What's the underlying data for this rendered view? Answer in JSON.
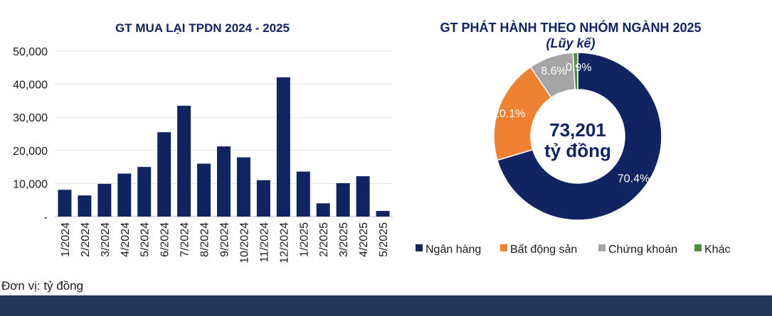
{
  "chart_data": [
    {
      "type": "bar",
      "title": "GT MUA LẠI TPDN 2024 - 2025",
      "categories": [
        "1/2024",
        "2/2024",
        "3/2024",
        "4/2024",
        "5/2024",
        "6/2024",
        "7/2024",
        "8/2024",
        "9/2024",
        "10/2024",
        "11/2024",
        "12/2024",
        "1/2025",
        "2/2025",
        "3/2025",
        "4/2025",
        "5/2025"
      ],
      "values": [
        8100,
        6400,
        9900,
        13000,
        15000,
        25500,
        33500,
        16000,
        21200,
        17900,
        11000,
        42100,
        13600,
        4000,
        10100,
        12200,
        1700
      ],
      "ylim": [
        0,
        50000
      ],
      "yticks": [
        0,
        10000,
        20000,
        30000,
        40000,
        50000
      ],
      "ytick_labels": [
        "-",
        "10,000",
        "20,000",
        "30,000",
        "40,000",
        "50,000"
      ],
      "color": "#0f2461",
      "grid": true
    },
    {
      "type": "pie",
      "title": "GT PHÁT HÀNH THEO NHÓM NGÀNH 2025",
      "subtitle": "(Lũy kế)",
      "center_value": "73,201",
      "center_unit": "tỷ đồng",
      "slices": [
        {
          "label": "Ngân hàng",
          "value": 70.4,
          "display": "70.4%",
          "color": "#0f2461"
        },
        {
          "label": "Bất động sản",
          "value": 20.1,
          "display": "20.1%",
          "color": "#ef8133"
        },
        {
          "label": "Chứng khoán",
          "value": 8.6,
          "display": "8.6%",
          "color": "#a5a5a5"
        },
        {
          "label": "Khác",
          "value": 0.9,
          "display": "0.9%",
          "color": "#4d8f3b"
        }
      ],
      "legend_position": "bottom"
    }
  ],
  "footnote": "Đơn vị: tỷ đồng"
}
